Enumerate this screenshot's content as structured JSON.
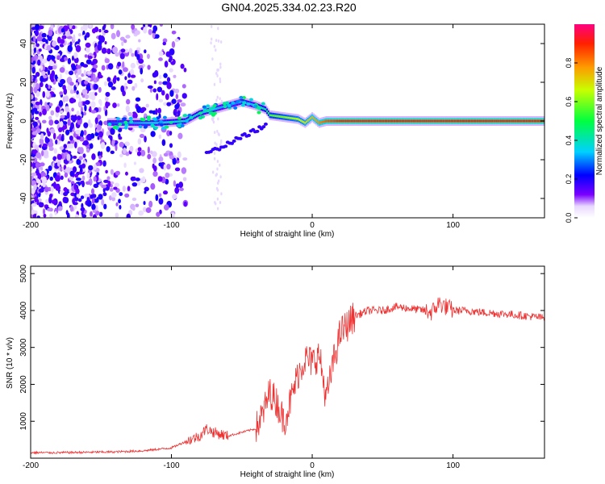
{
  "title": "GN04.2025.334.02.23.R20",
  "chart_data": [
    {
      "type": "heatmap",
      "title": "GN04.2025.334.02.23.R20",
      "xlabel": "Height of straight line (km)",
      "ylabel": "Frequency (Hz)",
      "xlim": [
        -200,
        165
      ],
      "ylim": [
        -50,
        50
      ],
      "xticks": [
        -200,
        -100,
        0,
        100
      ],
      "yticks": [
        -40,
        -20,
        0,
        20,
        40
      ],
      "colorbar": {
        "label": "Normalized spectral amplitude",
        "range": [
          0,
          1
        ],
        "ticks": [
          "0.0",
          "0.2",
          "0.4",
          "0.6",
          "0.8"
        ]
      },
      "ridge": {
        "x": [
          -145,
          -130,
          -110,
          -90,
          -80,
          -70,
          -60,
          -50,
          -40,
          -33,
          -30,
          -20,
          -10,
          -5,
          0,
          5,
          10,
          20,
          40,
          60,
          80,
          100,
          120,
          140,
          165
        ],
        "freq_hz": [
          -1,
          -1,
          -1,
          0,
          4,
          6,
          8,
          10,
          8,
          6,
          3,
          2,
          1,
          -1,
          2,
          -1,
          0,
          0,
          0,
          0,
          0,
          0,
          0,
          0,
          0
        ],
        "amplitude": [
          0.25,
          0.3,
          0.35,
          0.4,
          0.4,
          0.35,
          0.3,
          0.3,
          0.35,
          0.45,
          0.55,
          0.6,
          0.65,
          0.7,
          0.75,
          0.8,
          0.85,
          0.9,
          0.9,
          0.9,
          0.9,
          0.9,
          0.9,
          0.9,
          0.9
        ]
      }
    },
    {
      "type": "line",
      "title": "",
      "xlabel": "Height of straight line (km)",
      "ylabel": "SNR (10 * v/v)",
      "xlim": [
        -200,
        165
      ],
      "ylim": [
        0,
        5200
      ],
      "xticks": [
        -200,
        -100,
        0,
        100
      ],
      "yticks": [
        1000,
        2000,
        3000,
        4000,
        5000
      ],
      "series": [
        {
          "name": "SNR",
          "color": "#ee3333",
          "x": [
            -200,
            -180,
            -160,
            -140,
            -120,
            -100,
            -90,
            -80,
            -75,
            -70,
            -60,
            -50,
            -40,
            -35,
            -30,
            -25,
            -20,
            -15,
            -10,
            -5,
            0,
            5,
            10,
            15,
            20,
            25,
            30,
            40,
            50,
            60,
            70,
            80,
            85,
            90,
            95,
            100,
            110,
            120,
            140,
            165
          ],
          "values": [
            150,
            150,
            160,
            170,
            200,
            280,
            450,
            600,
            800,
            700,
            600,
            700,
            800,
            1200,
            1800,
            1500,
            1000,
            1600,
            2300,
            2700,
            2600,
            2800,
            1600,
            2600,
            3400,
            3600,
            3850,
            4000,
            4000,
            4100,
            4050,
            4000,
            3950,
            4200,
            4100,
            4000,
            4000,
            3950,
            3900,
            3800
          ]
        }
      ]
    }
  ],
  "colors": {
    "line": "#ee3333",
    "axis": "#000000",
    "scatter": "#6a00f4"
  }
}
